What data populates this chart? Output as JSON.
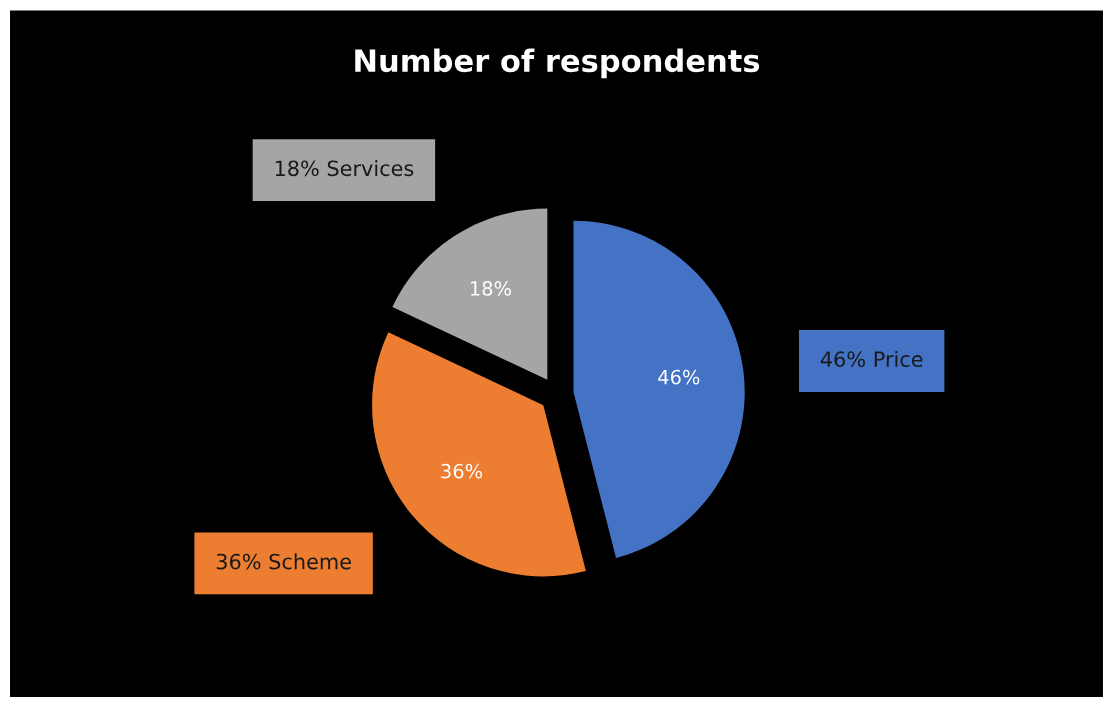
{
  "chart_data": {
    "type": "pie",
    "title": "Number of respondents",
    "categories": [
      "Price",
      "Scheme",
      "Services"
    ],
    "values": [
      46,
      36,
      18
    ],
    "value_labels": [
      "46%",
      "36%",
      "18%"
    ],
    "colors": [
      "#4472c4",
      "#ed7d31",
      "#a5a5a5"
    ],
    "data_labels": true,
    "legend": false
  }
}
